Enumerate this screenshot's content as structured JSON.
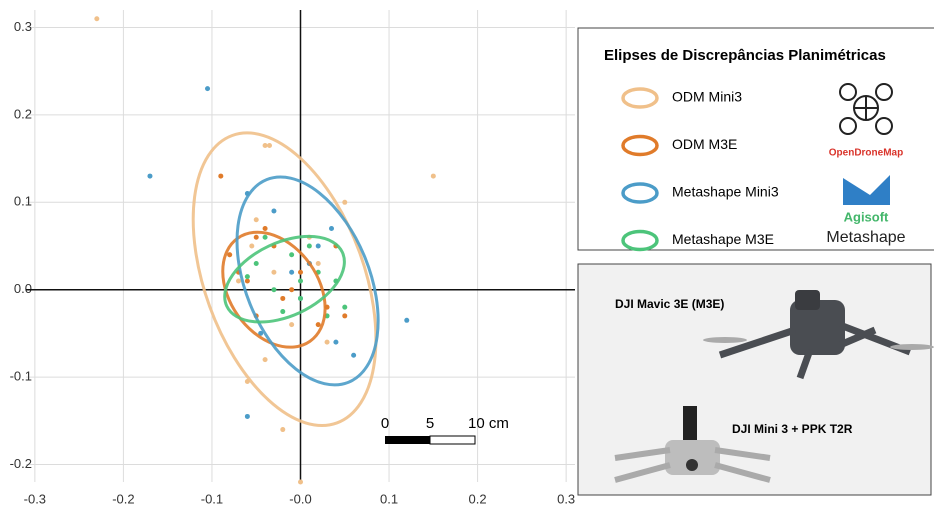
{
  "chart_data": {
    "type": "scatter",
    "xlim": [
      -0.31,
      0.31
    ],
    "ylim": [
      -0.22,
      0.32
    ],
    "xticks": [
      -0.3,
      -0.2,
      -0.1,
      {
        "value": 0,
        "label": "-0.0"
      },
      0.1,
      0.2,
      0.3
    ],
    "yticks": [
      -0.2,
      -0.1,
      {
        "value": 0,
        "label": "0.0"
      },
      0.1,
      0.2,
      0.3
    ],
    "grid": true,
    "series": [
      {
        "name": "ODM Mini3",
        "color": "#f0c08a",
        "x": [
          -0.23,
          -0.04,
          -0.035,
          0.15,
          -0.06,
          -0.02,
          0.03,
          -0.08,
          -0.05,
          0.0,
          -0.03,
          0.05,
          -0.07,
          0.02,
          -0.01,
          -0.04,
          -0.055,
          0.01
        ],
        "y": [
          0.31,
          0.165,
          0.165,
          0.13,
          -0.105,
          -0.16,
          -0.06,
          0.04,
          0.08,
          -0.22,
          0.02,
          0.1,
          0.01,
          0.03,
          -0.04,
          -0.08,
          0.05,
          0.06
        ],
        "ellipse": {
          "cx": -0.018,
          "cy": 0.012,
          "rx": 0.09,
          "ry": 0.175,
          "angle": -20
        }
      },
      {
        "name": "ODM M3E",
        "color": "#e07b2a",
        "x": [
          -0.09,
          -0.07,
          -0.05,
          -0.03,
          -0.01,
          0.01,
          0.03,
          -0.06,
          -0.04,
          -0.02,
          0.0,
          0.02,
          0.04,
          -0.08,
          -0.05,
          0.05
        ],
        "y": [
          0.13,
          0.02,
          -0.03,
          0.05,
          0.0,
          0.03,
          -0.02,
          0.01,
          0.07,
          -0.01,
          0.02,
          -0.04,
          0.05,
          0.04,
          0.06,
          -0.03
        ],
        "ellipse": {
          "cx": -0.03,
          "cy": 0.0,
          "rx": 0.05,
          "ry": 0.072,
          "angle": -35
        }
      },
      {
        "name": "Metashape Mini3",
        "color": "#4b9cc8",
        "x": [
          -0.105,
          -0.17,
          -0.06,
          -0.06,
          0.12,
          -0.03,
          0.0,
          0.02,
          -0.01,
          0.04,
          0.06,
          -0.045,
          0.01,
          0.035
        ],
        "y": [
          0.23,
          0.13,
          -0.145,
          0.11,
          -0.035,
          0.09,
          -0.01,
          0.05,
          0.02,
          -0.06,
          -0.075,
          -0.05,
          0.03,
          0.07
        ],
        "ellipse": {
          "cx": 0.008,
          "cy": 0.01,
          "rx": 0.07,
          "ry": 0.125,
          "angle": -22
        }
      },
      {
        "name": "Metashape M3E",
        "color": "#4cc47a",
        "x": [
          -0.05,
          -0.03,
          -0.01,
          0.0,
          0.02,
          0.04,
          -0.06,
          -0.02,
          0.01,
          0.03,
          -0.04,
          0.0,
          0.05
        ],
        "y": [
          0.03,
          0.0,
          0.04,
          -0.01,
          0.02,
          0.01,
          0.015,
          -0.025,
          0.05,
          -0.03,
          0.06,
          0.01,
          -0.02
        ],
        "ellipse": {
          "cx": -0.018,
          "cy": 0.012,
          "rx": 0.072,
          "ry": 0.042,
          "angle": -25
        }
      }
    ]
  },
  "scale_bar": {
    "labels": [
      "0",
      "5",
      "10 cm"
    ]
  },
  "legend_panel": {
    "title": "Elipses de Discrepâncias Planimétricas",
    "logo_odm": "OpenDroneMap",
    "logo_agisoft": "Agisoft",
    "logo_metashape": "Metashape"
  },
  "drone_panel": {
    "label_m3e": "DJI Mavic 3E (M3E)",
    "label_mini3": "DJI Mini 3 + PPK T2R"
  }
}
